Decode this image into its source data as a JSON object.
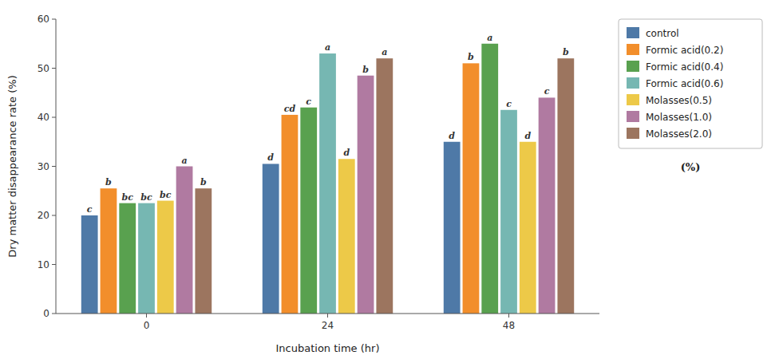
{
  "chart_data": {
    "type": "bar",
    "categories": [
      "0",
      "24",
      "48"
    ],
    "series": [
      {
        "name": "control",
        "color": "#4e79a7",
        "values": [
          20.0,
          30.5,
          35.0
        ],
        "annotations": [
          "c",
          "d",
          "d"
        ]
      },
      {
        "name": "Formic acid(0.2)",
        "color": "#f28e2b",
        "values": [
          25.5,
          40.5,
          51.0
        ],
        "annotations": [
          "b",
          "cd",
          "b"
        ]
      },
      {
        "name": "Formic acid(0.4)",
        "color": "#59a14f",
        "values": [
          22.5,
          42.0,
          55.0
        ],
        "annotations": [
          "bc",
          "c",
          "a"
        ]
      },
      {
        "name": "Formic acid(0.6)",
        "color": "#76b7b2",
        "values": [
          22.5,
          53.0,
          41.5
        ],
        "annotations": [
          "bc",
          "a",
          "c"
        ]
      },
      {
        "name": "Molasses(0.5)",
        "color": "#edc948",
        "values": [
          23.0,
          31.5,
          35.0
        ],
        "annotations": [
          "bc",
          "d",
          "d"
        ]
      },
      {
        "name": "Molasses(1.0)",
        "color": "#b07aa1",
        "values": [
          30.0,
          48.5,
          44.0
        ],
        "annotations": [
          "a",
          "b",
          "c"
        ]
      },
      {
        "name": "Molasses(2.0)",
        "color": "#9c755f",
        "values": [
          25.5,
          52.0,
          52.0
        ],
        "annotations": [
          "b",
          "a",
          "b"
        ]
      }
    ],
    "xlabel": "Incubation time (hr)",
    "ylabel": "Dry matter disappearance rate (%)",
    "ylim": [
      0,
      60
    ],
    "yticks": [
      0,
      10,
      20,
      30,
      40,
      50,
      60
    ],
    "grid": false,
    "legend": "right",
    "annotations": [
      "(%)"
    ]
  }
}
